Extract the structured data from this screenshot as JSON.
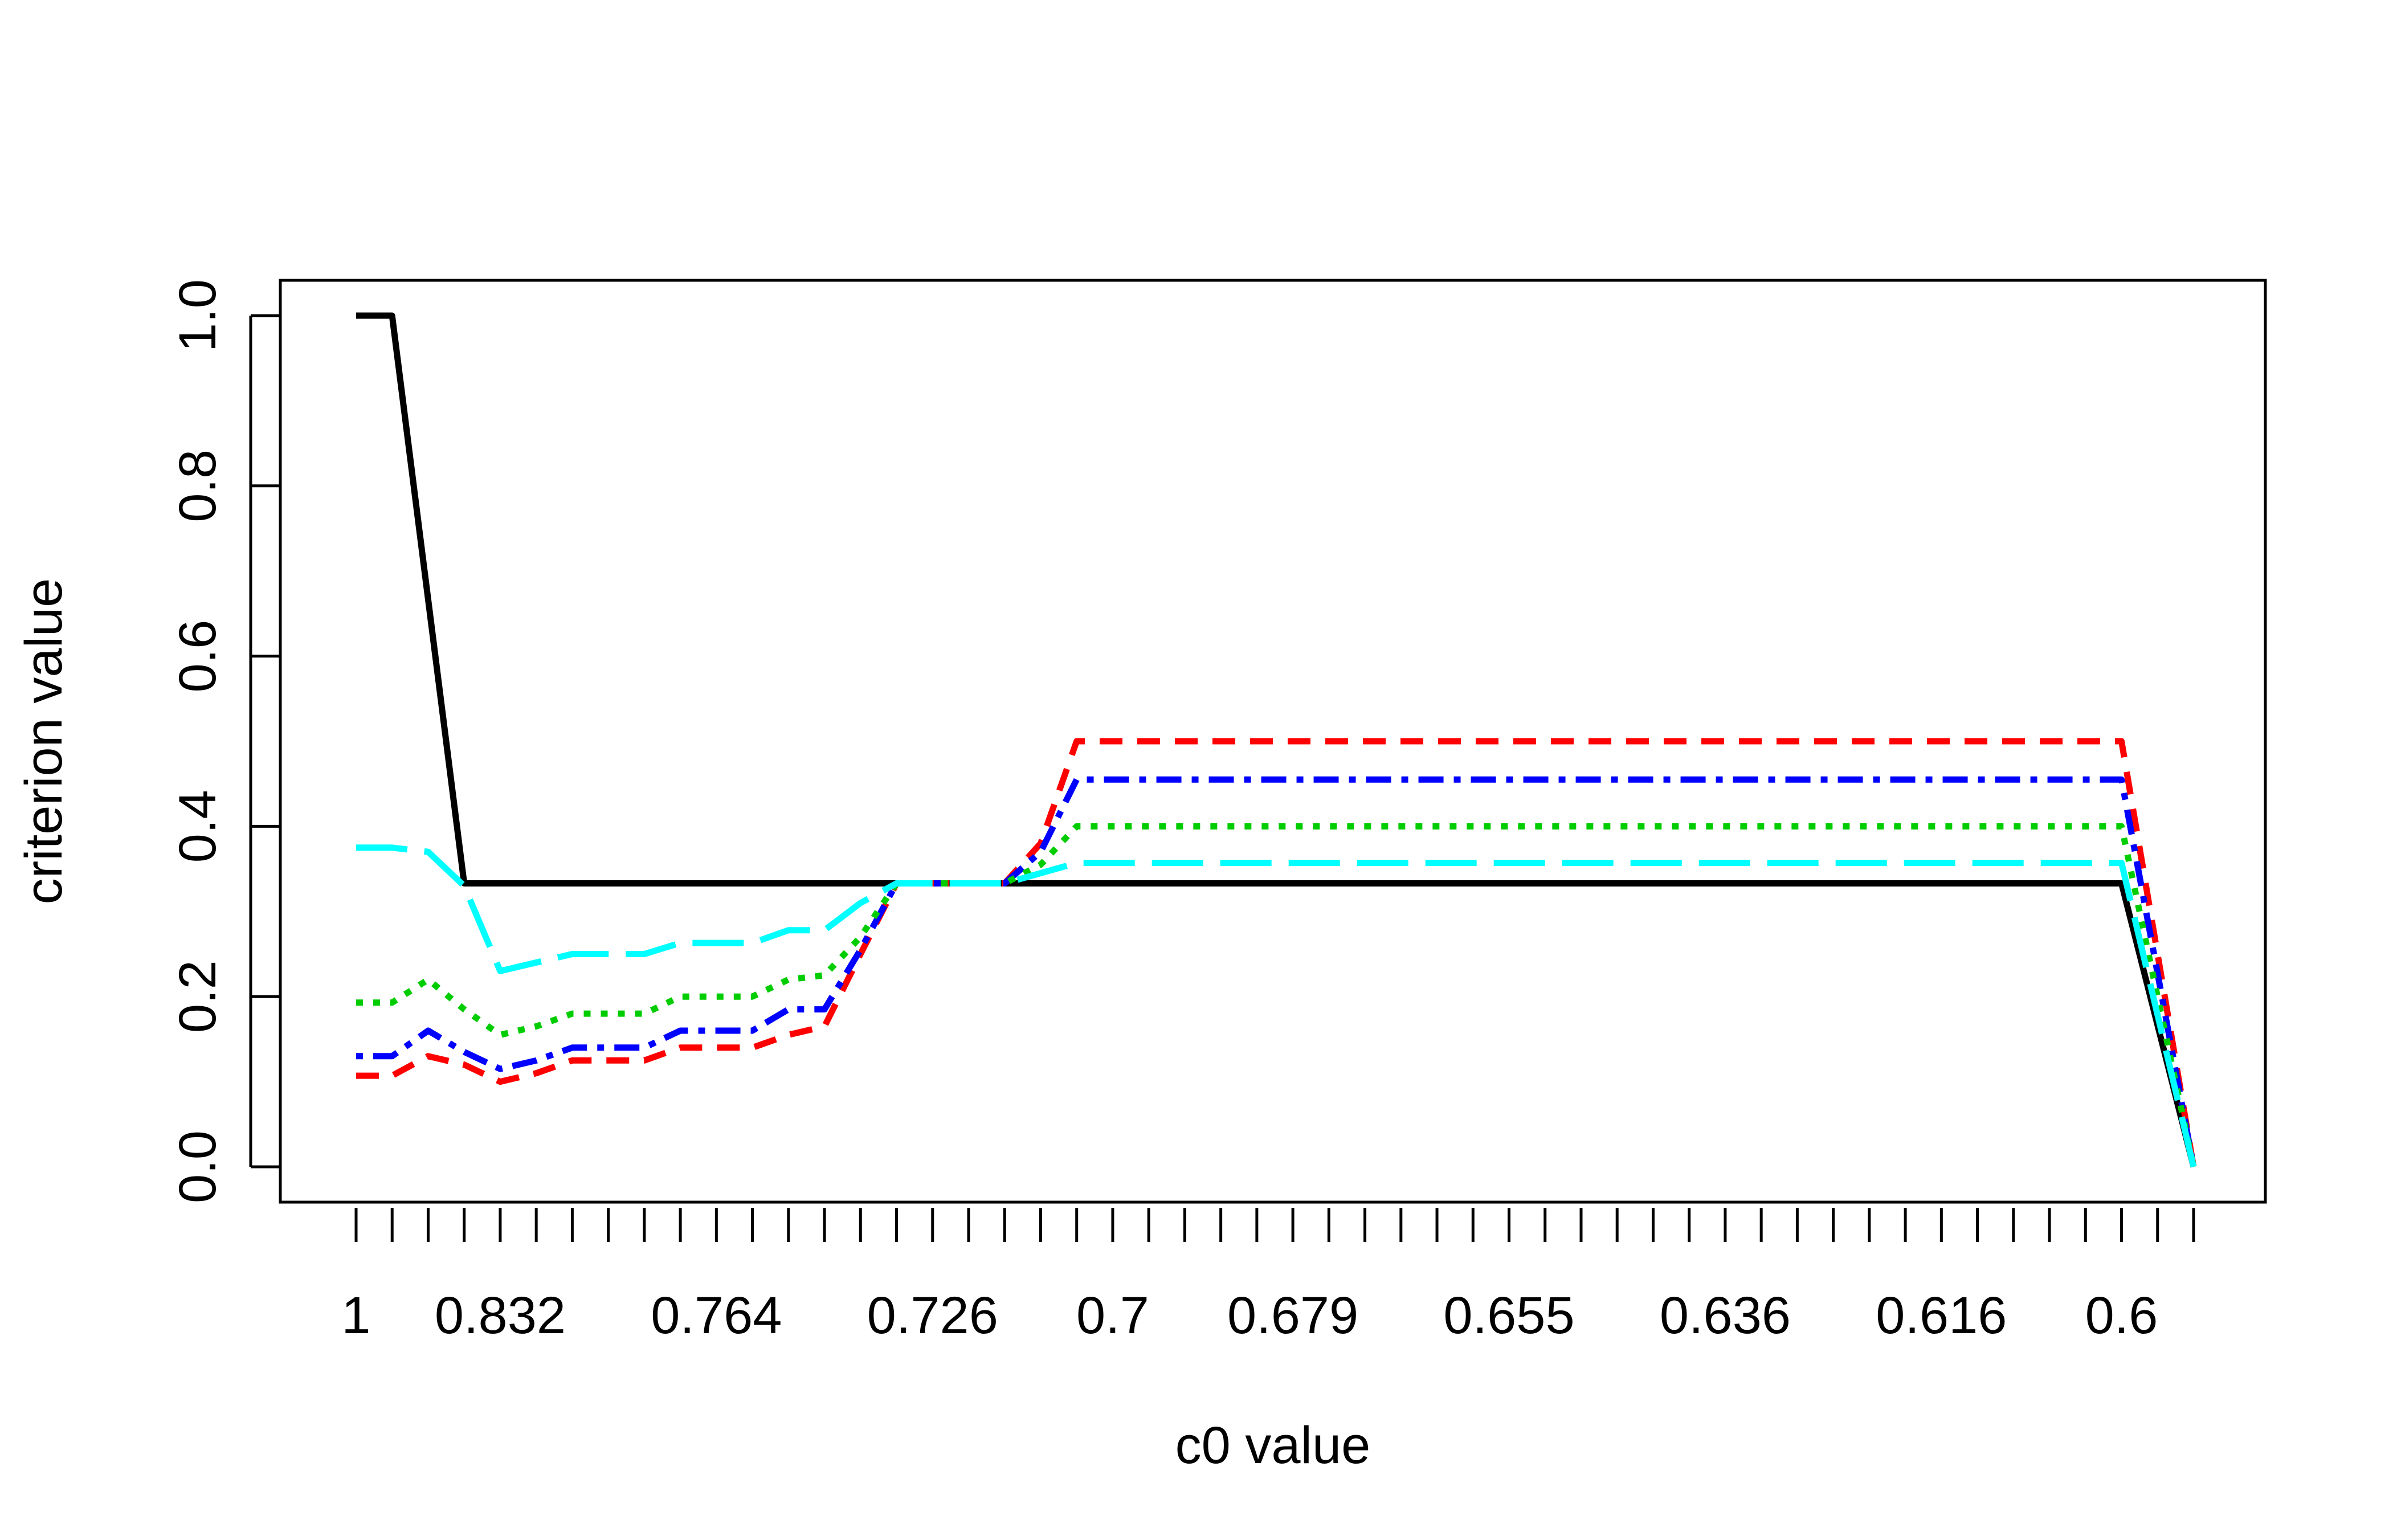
{
  "chart_data": {
    "type": "line",
    "title": "",
    "xlabel": "c0 value",
    "ylabel": "criterion value",
    "ylim": [
      0,
      1
    ],
    "y_ticks": [
      "0.0",
      "0.2",
      "0.4",
      "0.6",
      "0.8",
      "1.0"
    ],
    "x_index_range": [
      1,
      52
    ],
    "x_tick_labels": [
      {
        "index": 1,
        "label": "1"
      },
      {
        "index": 5,
        "label": "0.832"
      },
      {
        "index": 11,
        "label": "0.764"
      },
      {
        "index": 17,
        "label": "0.726"
      },
      {
        "index": 22,
        "label": "0.7"
      },
      {
        "index": 27,
        "label": "0.679"
      },
      {
        "index": 33,
        "label": "0.655"
      },
      {
        "index": 39,
        "label": "0.636"
      },
      {
        "index": 45,
        "label": "0.616"
      },
      {
        "index": 50,
        "label": "0.6"
      }
    ],
    "grid": false,
    "legend": "none",
    "series": [
      {
        "color": "#000000",
        "dash": "solid",
        "points": [
          [
            1,
            1.0
          ],
          [
            2,
            1.0
          ],
          [
            4,
            0.333
          ],
          [
            50,
            0.333
          ],
          [
            52,
            0.0
          ]
        ]
      },
      {
        "color": "#ff0000",
        "dash": "dashed",
        "points": [
          [
            1,
            0.107
          ],
          [
            2,
            0.107
          ],
          [
            3,
            0.13
          ],
          [
            4,
            0.12
          ],
          [
            5,
            0.1
          ],
          [
            6,
            0.11
          ],
          [
            7,
            0.125
          ],
          [
            8,
            0.125
          ],
          [
            9,
            0.125
          ],
          [
            10,
            0.14
          ],
          [
            11,
            0.14
          ],
          [
            12,
            0.14
          ],
          [
            13,
            0.155
          ],
          [
            14,
            0.165
          ],
          [
            15,
            0.25
          ],
          [
            16,
            0.333
          ],
          [
            19,
            0.333
          ],
          [
            20,
            0.38
          ],
          [
            21,
            0.5
          ],
          [
            50,
            0.5
          ],
          [
            52,
            0.0
          ]
        ]
      },
      {
        "color": "#0000ff",
        "dash": "dotdash",
        "points": [
          [
            1,
            0.13
          ],
          [
            2,
            0.13
          ],
          [
            3,
            0.16
          ],
          [
            4,
            0.135
          ],
          [
            5,
            0.115
          ],
          [
            6,
            0.125
          ],
          [
            7,
            0.14
          ],
          [
            8,
            0.14
          ],
          [
            9,
            0.14
          ],
          [
            10,
            0.16
          ],
          [
            11,
            0.16
          ],
          [
            12,
            0.16
          ],
          [
            13,
            0.185
          ],
          [
            14,
            0.185
          ],
          [
            15,
            0.255
          ],
          [
            16,
            0.333
          ],
          [
            19,
            0.333
          ],
          [
            20,
            0.37
          ],
          [
            21,
            0.455
          ],
          [
            50,
            0.455
          ],
          [
            52,
            0.0
          ]
        ]
      },
      {
        "color": "#00cd00",
        "dash": "dotted",
        "points": [
          [
            1,
            0.193
          ],
          [
            2,
            0.193
          ],
          [
            3,
            0.22
          ],
          [
            4,
            0.185
          ],
          [
            5,
            0.155
          ],
          [
            6,
            0.165
          ],
          [
            7,
            0.18
          ],
          [
            8,
            0.18
          ],
          [
            9,
            0.18
          ],
          [
            10,
            0.2
          ],
          [
            11,
            0.2
          ],
          [
            12,
            0.2
          ],
          [
            13,
            0.22
          ],
          [
            14,
            0.225
          ],
          [
            15,
            0.27
          ],
          [
            16,
            0.333
          ],
          [
            19,
            0.333
          ],
          [
            20,
            0.355
          ],
          [
            21,
            0.4
          ],
          [
            50,
            0.4
          ],
          [
            52,
            0.0
          ]
        ]
      },
      {
        "color": "#00ffff",
        "dash": "longdash",
        "points": [
          [
            1,
            0.375
          ],
          [
            2,
            0.375
          ],
          [
            3,
            0.37
          ],
          [
            4,
            0.33
          ],
          [
            5,
            0.23
          ],
          [
            6,
            0.24
          ],
          [
            7,
            0.25
          ],
          [
            8,
            0.25
          ],
          [
            9,
            0.25
          ],
          [
            10,
            0.263
          ],
          [
            11,
            0.263
          ],
          [
            12,
            0.263
          ],
          [
            13,
            0.278
          ],
          [
            14,
            0.278
          ],
          [
            15,
            0.31
          ],
          [
            16,
            0.333
          ],
          [
            19,
            0.333
          ],
          [
            20,
            0.345
          ],
          [
            21,
            0.357
          ],
          [
            50,
            0.357
          ],
          [
            52,
            0.0
          ]
        ]
      }
    ]
  }
}
